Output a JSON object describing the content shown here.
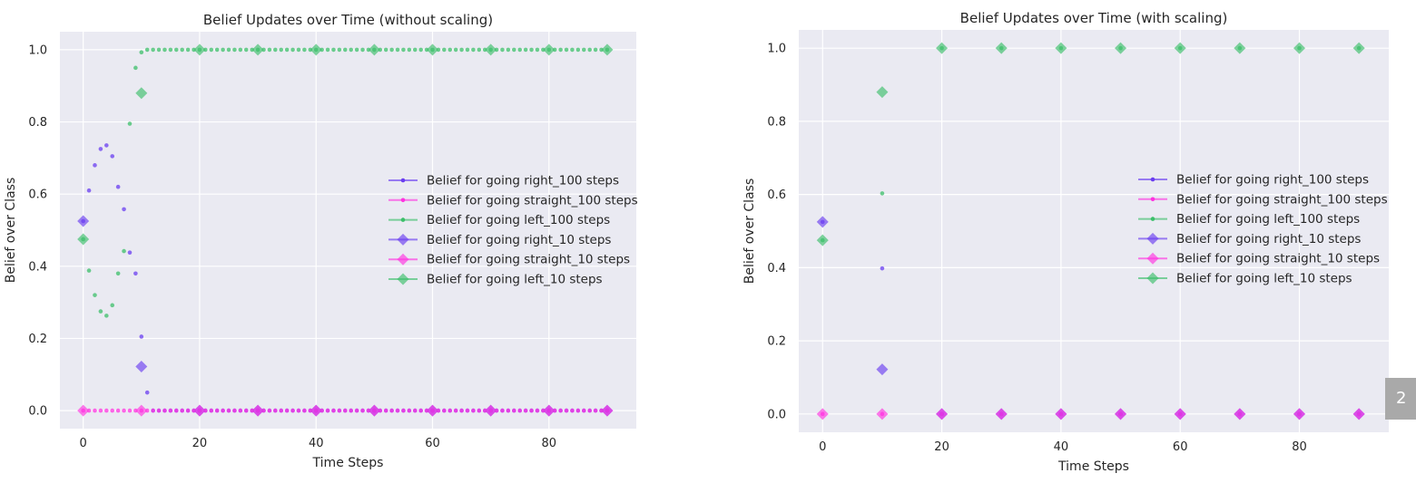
{
  "page_badge": "2",
  "chart_data": [
    {
      "type": "scatter",
      "title": "Belief Updates over Time (without scaling)",
      "xlabel": "Time Steps",
      "ylabel": "Belief over Class",
      "xlim": [
        -4,
        95
      ],
      "ylim": [
        -0.05,
        1.05
      ],
      "xticks": [
        0,
        20,
        40,
        60,
        80
      ],
      "yticks": [
        0.0,
        0.2,
        0.4,
        0.6,
        0.8,
        1.0
      ],
      "grid": true,
      "legend_position": "right",
      "series": [
        {
          "name": "Belief for going right_100 steps",
          "color": "#6a3df0",
          "marker": "dot",
          "x": [
            0,
            1,
            2,
            3,
            4,
            5,
            6,
            7,
            8,
            9,
            10,
            11,
            12,
            13,
            14,
            15,
            16,
            17,
            18,
            19,
            20,
            21,
            22,
            23,
            24,
            25,
            26,
            27,
            28,
            29,
            30,
            31,
            32,
            33,
            34,
            35,
            36,
            37,
            38,
            39,
            40,
            41,
            42,
            43,
            44,
            45,
            46,
            47,
            48,
            49,
            50,
            51,
            52,
            53,
            54,
            55,
            56,
            57,
            58,
            59,
            60,
            61,
            62,
            63,
            64,
            65,
            66,
            67,
            68,
            69,
            70,
            71,
            72,
            73,
            74,
            75,
            76,
            77,
            78,
            79,
            80,
            81,
            82,
            83,
            84,
            85,
            86,
            87,
            88,
            89,
            90
          ],
          "y": [
            0.525,
            0.61,
            0.68,
            0.725,
            0.735,
            0.705,
            0.62,
            0.558,
            0.438,
            0.38,
            0.205,
            0.05,
            0.0,
            0.0,
            0.0,
            0.0,
            0.0,
            0.0,
            0.0,
            0.0,
            0.0,
            0.0,
            0.0,
            0.0,
            0.0,
            0.0,
            0.0,
            0.0,
            0.0,
            0.0,
            0.0,
            0.0,
            0.0,
            0.0,
            0.0,
            0.0,
            0.0,
            0.0,
            0.0,
            0.0,
            0.0,
            0.0,
            0.0,
            0.0,
            0.0,
            0.0,
            0.0,
            0.0,
            0.0,
            0.0,
            0.0,
            0.0,
            0.0,
            0.0,
            0.0,
            0.0,
            0.0,
            0.0,
            0.0,
            0.0,
            0.0,
            0.0,
            0.0,
            0.0,
            0.0,
            0.0,
            0.0,
            0.0,
            0.0,
            0.0,
            0.0,
            0.0,
            0.0,
            0.0,
            0.0,
            0.0,
            0.0,
            0.0,
            0.0,
            0.0,
            0.0,
            0.0,
            0.0,
            0.0,
            0.0,
            0.0,
            0.0,
            0.0,
            0.0,
            0.0,
            0.0
          ]
        },
        {
          "name": "Belief for going straight_100 steps",
          "color": "#ff33e0",
          "marker": "dot",
          "x": [
            0,
            1,
            2,
            3,
            4,
            5,
            6,
            7,
            8,
            9,
            10,
            11,
            12,
            13,
            14,
            15,
            16,
            17,
            18,
            19,
            20,
            21,
            22,
            23,
            24,
            25,
            26,
            27,
            28,
            29,
            30,
            31,
            32,
            33,
            34,
            35,
            36,
            37,
            38,
            39,
            40,
            41,
            42,
            43,
            44,
            45,
            46,
            47,
            48,
            49,
            50,
            51,
            52,
            53,
            54,
            55,
            56,
            57,
            58,
            59,
            60,
            61,
            62,
            63,
            64,
            65,
            66,
            67,
            68,
            69,
            70,
            71,
            72,
            73,
            74,
            75,
            76,
            77,
            78,
            79,
            80,
            81,
            82,
            83,
            84,
            85,
            86,
            87,
            88,
            89,
            90
          ],
          "y": [
            0.0,
            0.0,
            0.0,
            0.0,
            0.0,
            0.0,
            0.0,
            0.0,
            0.0,
            0.0,
            0.0,
            0.0,
            0.0,
            0.0,
            0.0,
            0.0,
            0.0,
            0.0,
            0.0,
            0.0,
            0.0,
            0.0,
            0.0,
            0.0,
            0.0,
            0.0,
            0.0,
            0.0,
            0.0,
            0.0,
            0.0,
            0.0,
            0.0,
            0.0,
            0.0,
            0.0,
            0.0,
            0.0,
            0.0,
            0.0,
            0.0,
            0.0,
            0.0,
            0.0,
            0.0,
            0.0,
            0.0,
            0.0,
            0.0,
            0.0,
            0.0,
            0.0,
            0.0,
            0.0,
            0.0,
            0.0,
            0.0,
            0.0,
            0.0,
            0.0,
            0.0,
            0.0,
            0.0,
            0.0,
            0.0,
            0.0,
            0.0,
            0.0,
            0.0,
            0.0,
            0.0,
            0.0,
            0.0,
            0.0,
            0.0,
            0.0,
            0.0,
            0.0,
            0.0,
            0.0,
            0.0,
            0.0,
            0.0,
            0.0,
            0.0,
            0.0,
            0.0,
            0.0,
            0.0,
            0.0,
            0.0
          ]
        },
        {
          "name": "Belief for going left_100 steps",
          "color": "#3cbf6a",
          "marker": "dot",
          "x": [
            0,
            1,
            2,
            3,
            4,
            5,
            6,
            7,
            8,
            9,
            10,
            11,
            12,
            13,
            14,
            15,
            16,
            17,
            18,
            19,
            20,
            21,
            22,
            23,
            24,
            25,
            26,
            27,
            28,
            29,
            30,
            31,
            32,
            33,
            34,
            35,
            36,
            37,
            38,
            39,
            40,
            41,
            42,
            43,
            44,
            45,
            46,
            47,
            48,
            49,
            50,
            51,
            52,
            53,
            54,
            55,
            56,
            57,
            58,
            59,
            60,
            61,
            62,
            63,
            64,
            65,
            66,
            67,
            68,
            69,
            70,
            71,
            72,
            73,
            74,
            75,
            76,
            77,
            78,
            79,
            80,
            81,
            82,
            83,
            84,
            85,
            86,
            87,
            88,
            89,
            90
          ],
          "y": [
            0.475,
            0.388,
            0.32,
            0.275,
            0.263,
            0.292,
            0.38,
            0.442,
            0.795,
            0.95,
            0.993,
            1.0,
            1.0,
            1.0,
            1.0,
            1.0,
            1.0,
            1.0,
            1.0,
            1.0,
            1.0,
            1.0,
            1.0,
            1.0,
            1.0,
            1.0,
            1.0,
            1.0,
            1.0,
            1.0,
            1.0,
            1.0,
            1.0,
            1.0,
            1.0,
            1.0,
            1.0,
            1.0,
            1.0,
            1.0,
            1.0,
            1.0,
            1.0,
            1.0,
            1.0,
            1.0,
            1.0,
            1.0,
            1.0,
            1.0,
            1.0,
            1.0,
            1.0,
            1.0,
            1.0,
            1.0,
            1.0,
            1.0,
            1.0,
            1.0,
            1.0,
            1.0,
            1.0,
            1.0,
            1.0,
            1.0,
            1.0,
            1.0,
            1.0,
            1.0,
            1.0,
            1.0,
            1.0,
            1.0,
            1.0,
            1.0,
            1.0,
            1.0,
            1.0,
            1.0,
            1.0,
            1.0,
            1.0,
            1.0,
            1.0,
            1.0,
            1.0,
            1.0,
            1.0,
            1.0,
            1.0
          ]
        },
        {
          "name": "Belief for going right_10 steps",
          "color": "#6a3df0",
          "marker": "diamond",
          "x": [
            0,
            10,
            20,
            30,
            40,
            50,
            60,
            70,
            80,
            90
          ],
          "y": [
            0.525,
            0.122,
            0.0,
            0.0,
            0.0,
            0.0,
            0.0,
            0.0,
            0.0,
            0.0
          ]
        },
        {
          "name": "Belief for going straight_10 steps",
          "color": "#ff33e0",
          "marker": "diamond",
          "x": [
            0,
            10,
            20,
            30,
            40,
            50,
            60,
            70,
            80,
            90
          ],
          "y": [
            0.0,
            0.0,
            0.0,
            0.0,
            0.0,
            0.0,
            0.0,
            0.0,
            0.0,
            0.0
          ]
        },
        {
          "name": "Belief for going left_10 steps",
          "color": "#3cbf6a",
          "marker": "diamond",
          "x": [
            0,
            10,
            20,
            30,
            40,
            50,
            60,
            70,
            80,
            90
          ],
          "y": [
            0.475,
            0.88,
            1.0,
            1.0,
            1.0,
            1.0,
            1.0,
            1.0,
            1.0,
            1.0
          ]
        }
      ]
    },
    {
      "type": "scatter",
      "title": "Belief Updates over Time (with scaling)",
      "xlabel": "Time Steps",
      "ylabel": "Belief over Class",
      "xlim": [
        -4,
        95
      ],
      "ylim": [
        -0.05,
        1.05
      ],
      "xticks": [
        0,
        20,
        40,
        60,
        80
      ],
      "yticks": [
        0.0,
        0.2,
        0.4,
        0.6,
        0.8,
        1.0
      ],
      "grid": true,
      "legend_position": "right",
      "series": [
        {
          "name": "Belief for going right_100 steps",
          "color": "#6a3df0",
          "marker": "dot",
          "x": [
            0,
            10,
            20,
            30,
            40,
            50,
            60,
            70,
            80,
            90
          ],
          "y": [
            0.525,
            0.398,
            0.0,
            0.0,
            0.0,
            0.0,
            0.0,
            0.0,
            0.0,
            0.0
          ]
        },
        {
          "name": "Belief for going straight_100 steps",
          "color": "#ff33e0",
          "marker": "dot",
          "x": [
            0,
            10,
            20,
            30,
            40,
            50,
            60,
            70,
            80,
            90
          ],
          "y": [
            0.0,
            0.0,
            0.0,
            0.0,
            0.0,
            0.0,
            0.0,
            0.0,
            0.0,
            0.0
          ]
        },
        {
          "name": "Belief for going left_100 steps",
          "color": "#3cbf6a",
          "marker": "dot",
          "x": [
            0,
            10,
            20,
            30,
            40,
            50,
            60,
            70,
            80,
            90
          ],
          "y": [
            0.475,
            0.603,
            1.0,
            1.0,
            1.0,
            1.0,
            1.0,
            1.0,
            1.0,
            1.0
          ]
        },
        {
          "name": "Belief for going right_10 steps",
          "color": "#6a3df0",
          "marker": "diamond",
          "x": [
            0,
            10,
            20,
            30,
            40,
            50,
            60,
            70,
            80,
            90
          ],
          "y": [
            0.525,
            0.122,
            0.0,
            0.0,
            0.0,
            0.0,
            0.0,
            0.0,
            0.0,
            0.0
          ]
        },
        {
          "name": "Belief for going straight_10 steps",
          "color": "#ff33e0",
          "marker": "diamond",
          "x": [
            0,
            10,
            20,
            30,
            40,
            50,
            60,
            70,
            80,
            90
          ],
          "y": [
            0.0,
            0.0,
            0.0,
            0.0,
            0.0,
            0.0,
            0.0,
            0.0,
            0.0,
            0.0
          ]
        },
        {
          "name": "Belief for going left_10 steps",
          "color": "#3cbf6a",
          "marker": "diamond",
          "x": [
            0,
            10,
            20,
            30,
            40,
            50,
            60,
            70,
            80,
            90
          ],
          "y": [
            0.475,
            0.88,
            1.0,
            1.0,
            1.0,
            1.0,
            1.0,
            1.0,
            1.0,
            1.0
          ]
        }
      ]
    }
  ]
}
